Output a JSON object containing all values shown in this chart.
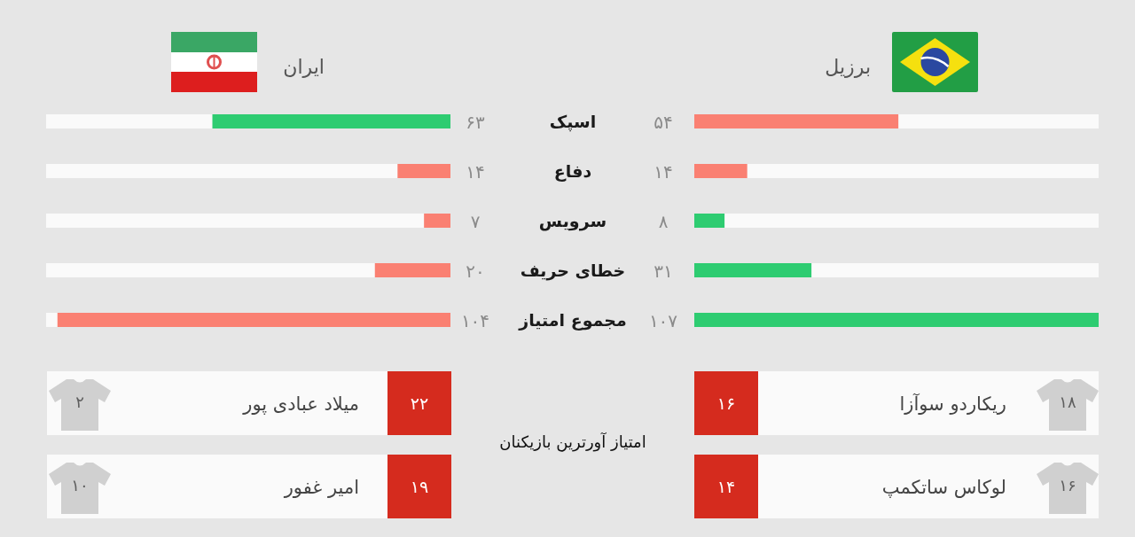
{
  "chart_data": [
    {
      "type": "bar",
      "orientation": "horizontal",
      "categories": [
        "اسپک",
        "دفاع",
        "سرویس",
        "خطای حریف",
        "مجموع امتیاز"
      ],
      "series": [
        {
          "name": "برزیل",
          "values": [
            54,
            14,
            8,
            31,
            107
          ],
          "value_labels": [
            "۵۴",
            "۱۴",
            "۸",
            "۳۱",
            "۱۰۷"
          ],
          "colors": [
            "#fa8072",
            "#fa8072",
            "#2ecc71",
            "#2ecc71",
            "#2ecc71"
          ]
        }
      ]
    },
    {
      "type": "bar",
      "orientation": "horizontal",
      "categories": [
        null,
        null,
        null,
        null,
        null
      ],
      "series": [
        {
          "name": "ایران",
          "values": [
            63,
            14,
            7,
            20,
            104
          ],
          "value_labels": [
            "۶۳",
            "۱۴",
            "۷",
            "۲۰",
            "۱۰۴"
          ],
          "colors": [
            "#2ecc71",
            "#fa8072",
            "#fa8072",
            "#fa8072",
            "#fa8072"
          ]
        }
      ]
    },
    {
      "type": "other",
      "title": "امتیاز آورترین بازیکنان",
      "categories": [
        "ریکاردو سوآزا",
        "لوکاس ساتکمپ",
        "میلاد عبادی پور",
        "امیر غفور"
      ],
      "values": [
        16,
        14,
        22,
        19
      ],
      "value_labels": [
        "۱۶",
        "۱۴",
        "۲۲",
        "۱۹"
      ],
      "color": "#d52b1e",
      "annotations": [
        "۱۸",
        "۱۶",
        "۲",
        "۱۰"
      ]
    }
  ]
}
